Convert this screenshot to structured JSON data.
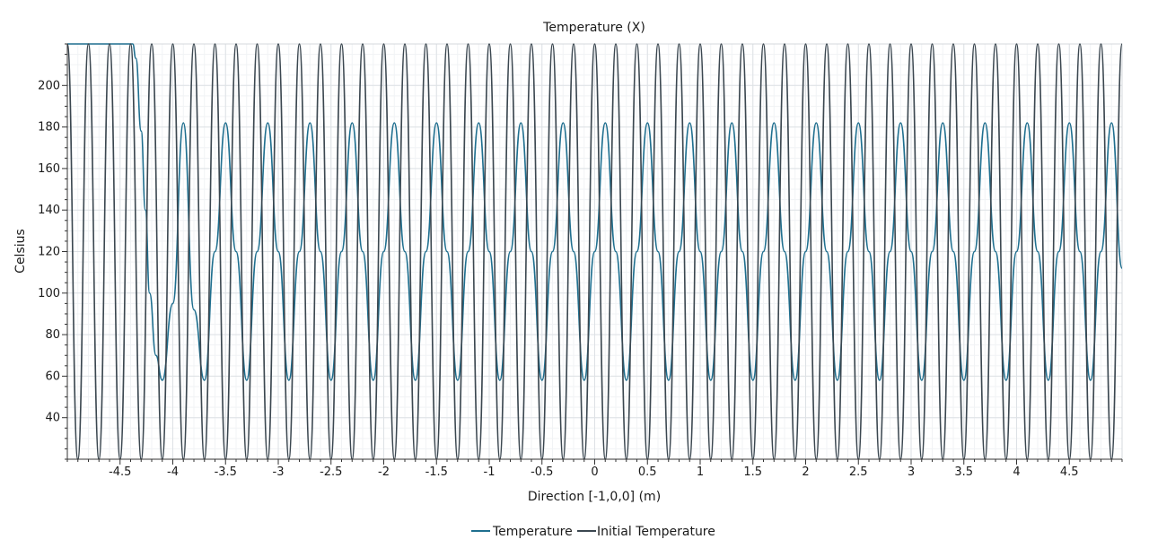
{
  "chart_data": {
    "type": "line",
    "title": "Temperature (X)",
    "xlabel": "Direction [-1,0,0] (m)",
    "ylabel": "Celsius",
    "xlim": [
      -5.0,
      5.0
    ],
    "ylim": [
      20,
      220
    ],
    "x_ticks": [
      -4.5,
      -4,
      -3.5,
      -3,
      -2.5,
      -2,
      -1.5,
      -1,
      -0.5,
      0,
      0.5,
      1,
      1.5,
      2,
      2.5,
      3,
      3.5,
      4,
      4.5
    ],
    "x_tick_labels": [
      "-4.5",
      "-4",
      "-3.5",
      "-3",
      "-2.5",
      "-2",
      "-1.5",
      "-1",
      "-0.5",
      "0",
      "0.5",
      "1",
      "1.5",
      "2",
      "2.5",
      "3",
      "3.5",
      "4",
      "4.5"
    ],
    "y_ticks": [
      40,
      60,
      80,
      100,
      120,
      140,
      160,
      180,
      200
    ],
    "y_tick_labels": [
      "40",
      "60",
      "80",
      "100",
      "120",
      "140",
      "160",
      "180",
      "200"
    ],
    "grid": true,
    "legend_position": "bottom-center",
    "series": [
      {
        "name": "Temperature",
        "color": "#1f6f8f",
        "points": [
          [
            -5.0,
            220
          ],
          [
            -4.38,
            220
          ],
          [
            -4.35,
            213
          ],
          [
            -4.3,
            178
          ],
          [
            -4.26,
            140
          ],
          [
            -4.22,
            100
          ],
          [
            -4.16,
            70
          ],
          [
            -4.1,
            58
          ],
          [
            -4.0,
            95
          ],
          [
            -3.9,
            182
          ],
          [
            -3.8,
            92
          ],
          [
            -3.7,
            58
          ],
          [
            -3.6,
            120
          ],
          [
            -3.5,
            182
          ],
          [
            -3.4,
            120
          ],
          [
            -3.3,
            58
          ],
          [
            -3.2,
            120
          ],
          [
            -3.1,
            182
          ],
          [
            -3.0,
            120
          ],
          [
            -2.9,
            58
          ],
          [
            -2.8,
            120
          ],
          [
            -2.7,
            182
          ],
          [
            -2.6,
            120
          ],
          [
            -2.5,
            58
          ],
          [
            -2.4,
            120
          ],
          [
            -2.3,
            182
          ],
          [
            -2.2,
            120
          ],
          [
            -2.1,
            58
          ],
          [
            -2.0,
            120
          ],
          [
            -1.9,
            182
          ],
          [
            -1.8,
            120
          ],
          [
            -1.7,
            58
          ],
          [
            -1.6,
            120
          ],
          [
            -1.5,
            182
          ],
          [
            -1.4,
            120
          ],
          [
            -1.3,
            58
          ],
          [
            -1.2,
            120
          ],
          [
            -1.1,
            182
          ],
          [
            -1.0,
            120
          ],
          [
            -0.9,
            58
          ],
          [
            -0.8,
            120
          ],
          [
            -0.7,
            182
          ],
          [
            -0.6,
            120
          ],
          [
            -0.5,
            58
          ],
          [
            -0.4,
            120
          ],
          [
            -0.3,
            182
          ],
          [
            -0.2,
            120
          ],
          [
            -0.1,
            58
          ],
          [
            0.0,
            120
          ],
          [
            0.1,
            182
          ],
          [
            0.2,
            120
          ],
          [
            0.3,
            58
          ],
          [
            0.4,
            120
          ],
          [
            0.5,
            182
          ],
          [
            0.6,
            120
          ],
          [
            0.7,
            58
          ],
          [
            0.8,
            120
          ],
          [
            0.9,
            182
          ],
          [
            1.0,
            120
          ],
          [
            1.1,
            58
          ],
          [
            1.2,
            120
          ],
          [
            1.3,
            182
          ],
          [
            1.4,
            120
          ],
          [
            1.5,
            58
          ],
          [
            1.6,
            120
          ],
          [
            1.7,
            182
          ],
          [
            1.8,
            120
          ],
          [
            1.9,
            58
          ],
          [
            2.0,
            120
          ],
          [
            2.1,
            182
          ],
          [
            2.2,
            120
          ],
          [
            2.3,
            58
          ],
          [
            2.4,
            120
          ],
          [
            2.5,
            182
          ],
          [
            2.6,
            120
          ],
          [
            2.7,
            58
          ],
          [
            2.8,
            120
          ],
          [
            2.9,
            182
          ],
          [
            3.0,
            120
          ],
          [
            3.1,
            58
          ],
          [
            3.2,
            120
          ],
          [
            3.3,
            182
          ],
          [
            3.4,
            120
          ],
          [
            3.5,
            58
          ],
          [
            3.6,
            120
          ],
          [
            3.7,
            182
          ],
          [
            3.8,
            120
          ],
          [
            3.9,
            58
          ],
          [
            4.0,
            120
          ],
          [
            4.1,
            182
          ],
          [
            4.2,
            120
          ],
          [
            4.3,
            58
          ],
          [
            4.4,
            120
          ],
          [
            4.5,
            182
          ],
          [
            4.6,
            120
          ],
          [
            4.7,
            58
          ],
          [
            4.8,
            120
          ],
          [
            4.9,
            182
          ],
          [
            5.0,
            112
          ]
        ]
      },
      {
        "name": "Initial Temperature",
        "color": "#3b4750",
        "points": [
          [
            -5.0,
            220
          ],
          [
            -4.9,
            20
          ],
          [
            -4.8,
            220
          ],
          [
            -4.7,
            20
          ],
          [
            -4.6,
            220
          ],
          [
            -4.5,
            20
          ],
          [
            -4.4,
            220
          ],
          [
            -4.3,
            20
          ],
          [
            -4.2,
            220
          ],
          [
            -4.1,
            20
          ],
          [
            -4.0,
            220
          ],
          [
            -3.9,
            20
          ],
          [
            -3.8,
            220
          ],
          [
            -3.7,
            20
          ],
          [
            -3.6,
            220
          ],
          [
            -3.5,
            20
          ],
          [
            -3.4,
            220
          ],
          [
            -3.3,
            20
          ],
          [
            -3.2,
            220
          ],
          [
            -3.1,
            20
          ],
          [
            -3.0,
            220
          ],
          [
            -2.9,
            20
          ],
          [
            -2.8,
            220
          ],
          [
            -2.7,
            20
          ],
          [
            -2.6,
            220
          ],
          [
            -2.5,
            20
          ],
          [
            -2.4,
            220
          ],
          [
            -2.3,
            20
          ],
          [
            -2.2,
            220
          ],
          [
            -2.1,
            20
          ],
          [
            -2.0,
            220
          ],
          [
            -1.9,
            20
          ],
          [
            -1.8,
            220
          ],
          [
            -1.7,
            20
          ],
          [
            -1.6,
            220
          ],
          [
            -1.5,
            20
          ],
          [
            -1.4,
            220
          ],
          [
            -1.3,
            20
          ],
          [
            -1.2,
            220
          ],
          [
            -1.1,
            20
          ],
          [
            -1.0,
            220
          ],
          [
            -0.9,
            20
          ],
          [
            -0.8,
            220
          ],
          [
            -0.7,
            20
          ],
          [
            -0.6,
            220
          ],
          [
            -0.5,
            20
          ],
          [
            -0.4,
            220
          ],
          [
            -0.3,
            20
          ],
          [
            -0.2,
            220
          ],
          [
            -0.1,
            20
          ],
          [
            0.0,
            220
          ],
          [
            0.1,
            20
          ],
          [
            0.2,
            220
          ],
          [
            0.3,
            20
          ],
          [
            0.4,
            220
          ],
          [
            0.5,
            20
          ],
          [
            0.6,
            220
          ],
          [
            0.7,
            20
          ],
          [
            0.8,
            220
          ],
          [
            0.9,
            20
          ],
          [
            1.0,
            220
          ],
          [
            1.1,
            20
          ],
          [
            1.2,
            220
          ],
          [
            1.3,
            20
          ],
          [
            1.4,
            220
          ],
          [
            1.5,
            20
          ],
          [
            1.6,
            220
          ],
          [
            1.7,
            20
          ],
          [
            1.8,
            220
          ],
          [
            1.9,
            20
          ],
          [
            2.0,
            220
          ],
          [
            2.1,
            20
          ],
          [
            2.2,
            220
          ],
          [
            2.3,
            20
          ],
          [
            2.4,
            220
          ],
          [
            2.5,
            20
          ],
          [
            2.6,
            220
          ],
          [
            2.7,
            20
          ],
          [
            2.8,
            220
          ],
          [
            2.9,
            20
          ],
          [
            3.0,
            220
          ],
          [
            3.1,
            20
          ],
          [
            3.2,
            220
          ],
          [
            3.3,
            20
          ],
          [
            3.4,
            220
          ],
          [
            3.5,
            20
          ],
          [
            3.6,
            220
          ],
          [
            3.7,
            20
          ],
          [
            3.8,
            220
          ],
          [
            3.9,
            20
          ],
          [
            4.0,
            220
          ],
          [
            4.1,
            20
          ],
          [
            4.2,
            220
          ],
          [
            4.3,
            20
          ],
          [
            4.4,
            220
          ],
          [
            4.5,
            20
          ],
          [
            4.6,
            220
          ],
          [
            4.7,
            20
          ],
          [
            4.8,
            220
          ],
          [
            4.9,
            20
          ],
          [
            5.0,
            220
          ]
        ]
      }
    ]
  }
}
